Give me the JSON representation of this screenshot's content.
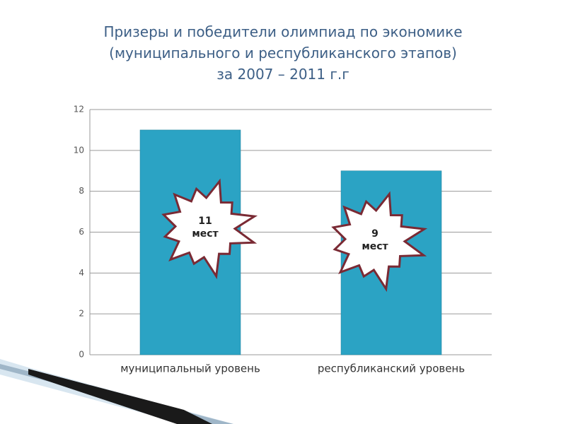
{
  "chart_data": {
    "type": "bar",
    "title": "Призеры и победители олимпиад по экономике\n(муниципального и республиканского этапов)\nза 2007 – 2011 г.г",
    "categories": [
      "муниципальный уровень",
      "республиканский уровень"
    ],
    "values": [
      11,
      9
    ],
    "value_labels": [
      "11\nмест",
      "9\nмест"
    ],
    "color": "#2ba3c4",
    "ylim": [
      0,
      12
    ],
    "yticks": [
      0,
      2,
      4,
      6,
      8,
      10,
      12
    ],
    "grid": true
  }
}
